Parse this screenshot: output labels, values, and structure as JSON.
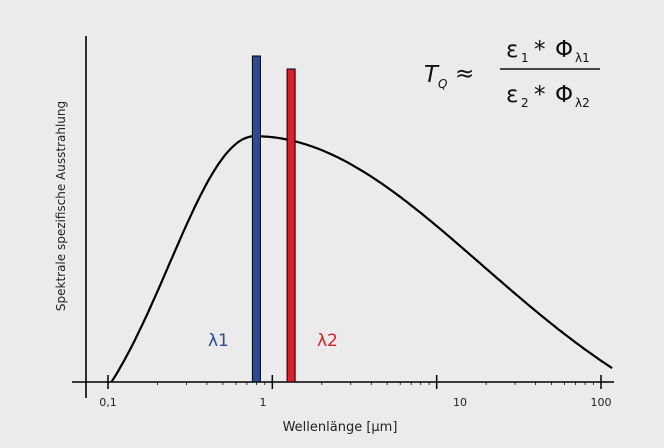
{
  "chart_data": {
    "type": "line",
    "xlabel": "Wellenlänge [µm]",
    "ylabel": "Spektrale spezifische Ausstrahlung",
    "x_scale": "log",
    "xlim": [
      0.07,
      130
    ],
    "ticks": [
      {
        "value": 0.1,
        "label": "0,1"
      },
      {
        "value": 1,
        "label": "1"
      },
      {
        "value": 10,
        "label": "10"
      },
      {
        "value": 100,
        "label": "100"
      }
    ],
    "minor_ticks": [
      0.2,
      0.3,
      0.4,
      0.5,
      0.6,
      0.7,
      0.8,
      0.9,
      2,
      3,
      4,
      5,
      6,
      7,
      8,
      9,
      20,
      30,
      40,
      50,
      60,
      70,
      80,
      90
    ],
    "curve_peak_um": 0.78,
    "bands": [
      {
        "label": "λ1",
        "center_um": 0.8,
        "relative_height": 1.0,
        "color": "#2a4a9c"
      },
      {
        "label": "λ2",
        "center_um": 1.3,
        "relative_height": 0.96,
        "color": "#e01e2a"
      }
    ]
  },
  "formula": {
    "lhs_main": "T",
    "lhs_sub": "Q",
    "approx": "≈",
    "num_eps": "ε",
    "num_eps_sub": "1",
    "num_op": "*",
    "num_phi": "Φ",
    "num_phi_sub": "λ1",
    "den_eps": "ε",
    "den_eps_sub": "2",
    "den_op": "*",
    "den_phi": "Φ",
    "den_phi_sub": "λ2"
  }
}
